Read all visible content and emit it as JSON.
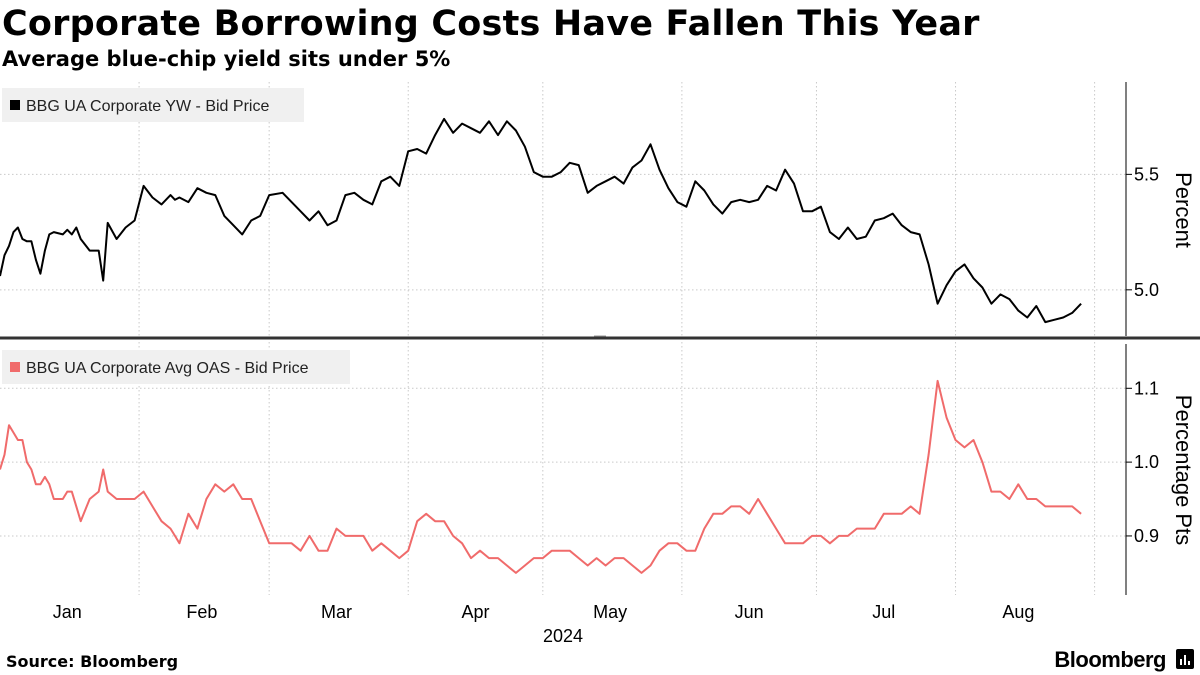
{
  "header": {
    "title": "Corporate Borrowing Costs Have Fallen This Year",
    "subtitle": "Average blue-chip yield sits under 5%"
  },
  "footer": {
    "source": "Source: Bloomberg",
    "brand": "Bloomberg"
  },
  "colors": {
    "top_series": "#000000",
    "bottom_series": "#f06b6b",
    "grid": "#c9c9c9",
    "legend_bg": "#f0f0f0",
    "divider": "#333333"
  },
  "chart_data": {
    "type": "line",
    "x_label": "2024",
    "months": [
      "Jan",
      "Feb",
      "Mar",
      "Apr",
      "May",
      "Jun",
      "Jul",
      "Aug"
    ],
    "panels": [
      {
        "name": "top",
        "axis_label": "Percent",
        "legend": "BBG UA Corporate YW - Bid Price",
        "ylim": [
          4.8,
          5.9
        ],
        "yticks": [
          "5.0",
          "5.5"
        ],
        "grid": true,
        "series": [
          {
            "name": "BBG UA Corporate YW - Bid Price",
            "x": [
              "2024-01-01",
              "2024-01-02",
              "2024-01-03",
              "2024-01-04",
              "2024-01-05",
              "2024-01-06",
              "2024-01-07",
              "2024-01-08",
              "2024-01-09",
              "2024-01-10",
              "2024-01-11",
              "2024-01-12",
              "2024-01-13",
              "2024-01-15",
              "2024-01-16",
              "2024-01-17",
              "2024-01-18",
              "2024-01-19",
              "2024-01-21",
              "2024-01-23",
              "2024-01-24",
              "2024-01-25",
              "2024-01-27",
              "2024-01-29",
              "2024-01-31",
              "2024-02-02",
              "2024-02-04",
              "2024-02-06",
              "2024-02-08",
              "2024-02-09",
              "2024-02-10",
              "2024-02-12",
              "2024-02-14",
              "2024-02-16",
              "2024-02-18",
              "2024-02-20",
              "2024-02-22",
              "2024-02-24",
              "2024-02-26",
              "2024-02-28",
              "2024-03-01",
              "2024-03-04",
              "2024-03-06",
              "2024-03-08",
              "2024-03-10",
              "2024-03-12",
              "2024-03-14",
              "2024-03-16",
              "2024-03-18",
              "2024-03-20",
              "2024-03-22",
              "2024-03-24",
              "2024-03-26",
              "2024-03-28",
              "2024-03-30",
              "2024-04-01",
              "2024-04-03",
              "2024-04-05",
              "2024-04-07",
              "2024-04-09",
              "2024-04-11",
              "2024-04-13",
              "2024-04-15",
              "2024-04-17",
              "2024-04-19",
              "2024-04-21",
              "2024-04-23",
              "2024-04-25",
              "2024-04-27",
              "2024-04-29",
              "2024-05-01",
              "2024-05-03",
              "2024-05-05",
              "2024-05-07",
              "2024-05-09",
              "2024-05-11",
              "2024-05-13",
              "2024-05-15",
              "2024-05-17",
              "2024-05-19",
              "2024-05-21",
              "2024-05-23",
              "2024-05-25",
              "2024-05-27",
              "2024-05-29",
              "2024-05-31",
              "2024-06-02",
              "2024-06-04",
              "2024-06-06",
              "2024-06-08",
              "2024-06-10",
              "2024-06-12",
              "2024-06-14",
              "2024-06-16",
              "2024-06-18",
              "2024-06-20",
              "2024-06-22",
              "2024-06-24",
              "2024-06-26",
              "2024-06-28",
              "2024-06-30",
              "2024-07-02",
              "2024-07-04",
              "2024-07-06",
              "2024-07-08",
              "2024-07-10",
              "2024-07-12",
              "2024-07-14",
              "2024-07-16",
              "2024-07-18",
              "2024-07-20",
              "2024-07-22",
              "2024-07-24",
              "2024-07-26",
              "2024-07-28",
              "2024-07-30",
              "2024-08-01",
              "2024-08-03",
              "2024-08-05",
              "2024-08-07",
              "2024-08-09",
              "2024-08-11",
              "2024-08-13",
              "2024-08-15",
              "2024-08-17",
              "2024-08-19",
              "2024-08-21",
              "2024-08-23",
              "2024-08-25",
              "2024-08-27",
              "2024-08-29"
            ],
            "values": [
              5.06,
              5.15,
              5.19,
              5.25,
              5.27,
              5.22,
              5.21,
              5.21,
              5.13,
              5.07,
              5.17,
              5.24,
              5.25,
              5.24,
              5.26,
              5.24,
              5.27,
              5.22,
              5.17,
              5.17,
              5.04,
              5.29,
              5.22,
              5.27,
              5.3,
              5.45,
              5.4,
              5.37,
              5.41,
              5.39,
              5.4,
              5.38,
              5.44,
              5.42,
              5.41,
              5.32,
              5.28,
              5.24,
              5.3,
              5.32,
              5.41,
              5.42,
              5.38,
              5.34,
              5.3,
              5.34,
              5.28,
              5.3,
              5.41,
              5.42,
              5.39,
              5.37,
              5.47,
              5.49,
              5.45,
              5.6,
              5.61,
              5.59,
              5.67,
              5.74,
              5.68,
              5.72,
              5.7,
              5.68,
              5.73,
              5.67,
              5.73,
              5.69,
              5.62,
              5.51,
              5.49,
              5.49,
              5.51,
              5.55,
              5.54,
              5.42,
              5.45,
              5.47,
              5.49,
              5.46,
              5.53,
              5.56,
              5.63,
              5.52,
              5.44,
              5.38,
              5.36,
              5.47,
              5.43,
              5.37,
              5.33,
              5.38,
              5.39,
              5.38,
              5.39,
              5.45,
              5.43,
              5.52,
              5.46,
              5.34,
              5.34,
              5.36,
              5.25,
              5.22,
              5.27,
              5.22,
              5.23,
              5.3,
              5.31,
              5.33,
              5.28,
              5.25,
              5.24,
              5.11,
              4.94,
              5.02,
              5.08,
              5.11,
              5.05,
              5.01,
              4.94,
              4.98,
              4.96,
              4.91,
              4.88,
              4.93,
              4.86,
              4.87,
              4.88,
              4.9,
              4.94
            ]
          }
        ]
      },
      {
        "name": "bottom",
        "axis_label": "Percentage Pts",
        "legend": "BBG UA Corporate Avg OAS - Bid Price",
        "ylim": [
          0.82,
          1.16
        ],
        "yticks": [
          "0.9",
          "1.0",
          "1.1"
        ],
        "grid": true,
        "series": [
          {
            "name": "BBG UA Corporate Avg OAS - Bid Price",
            "x": [
              "2024-01-01",
              "2024-01-02",
              "2024-01-03",
              "2024-01-04",
              "2024-01-05",
              "2024-01-06",
              "2024-01-07",
              "2024-01-08",
              "2024-01-09",
              "2024-01-10",
              "2024-01-11",
              "2024-01-12",
              "2024-01-13",
              "2024-01-15",
              "2024-01-16",
              "2024-01-17",
              "2024-01-18",
              "2024-01-19",
              "2024-01-21",
              "2024-01-23",
              "2024-01-24",
              "2024-01-25",
              "2024-01-27",
              "2024-01-29",
              "2024-01-31",
              "2024-02-02",
              "2024-02-04",
              "2024-02-06",
              "2024-02-08",
              "2024-02-09",
              "2024-02-10",
              "2024-02-12",
              "2024-02-14",
              "2024-02-16",
              "2024-02-18",
              "2024-02-20",
              "2024-02-22",
              "2024-02-24",
              "2024-02-26",
              "2024-02-28",
              "2024-03-01",
              "2024-03-04",
              "2024-03-06",
              "2024-03-08",
              "2024-03-10",
              "2024-03-12",
              "2024-03-14",
              "2024-03-16",
              "2024-03-18",
              "2024-03-20",
              "2024-03-22",
              "2024-03-24",
              "2024-03-26",
              "2024-03-28",
              "2024-03-30",
              "2024-04-01",
              "2024-04-03",
              "2024-04-05",
              "2024-04-07",
              "2024-04-09",
              "2024-04-11",
              "2024-04-13",
              "2024-04-15",
              "2024-04-17",
              "2024-04-19",
              "2024-04-21",
              "2024-04-23",
              "2024-04-25",
              "2024-04-27",
              "2024-04-29",
              "2024-05-01",
              "2024-05-03",
              "2024-05-05",
              "2024-05-07",
              "2024-05-09",
              "2024-05-11",
              "2024-05-13",
              "2024-05-15",
              "2024-05-17",
              "2024-05-19",
              "2024-05-21",
              "2024-05-23",
              "2024-05-25",
              "2024-05-27",
              "2024-05-29",
              "2024-05-31",
              "2024-06-02",
              "2024-06-04",
              "2024-06-06",
              "2024-06-08",
              "2024-06-10",
              "2024-06-12",
              "2024-06-14",
              "2024-06-16",
              "2024-06-18",
              "2024-06-20",
              "2024-06-22",
              "2024-06-24",
              "2024-06-26",
              "2024-06-28",
              "2024-06-30",
              "2024-07-02",
              "2024-07-04",
              "2024-07-06",
              "2024-07-08",
              "2024-07-10",
              "2024-07-12",
              "2024-07-14",
              "2024-07-16",
              "2024-07-18",
              "2024-07-20",
              "2024-07-22",
              "2024-07-24",
              "2024-07-26",
              "2024-07-28",
              "2024-07-30",
              "2024-08-01",
              "2024-08-03",
              "2024-08-05",
              "2024-08-07",
              "2024-08-09",
              "2024-08-11",
              "2024-08-13",
              "2024-08-15",
              "2024-08-17",
              "2024-08-19",
              "2024-08-21",
              "2024-08-23",
              "2024-08-25",
              "2024-08-27",
              "2024-08-29"
            ],
            "values": [
              0.99,
              1.01,
              1.05,
              1.04,
              1.03,
              1.03,
              1.0,
              0.99,
              0.97,
              0.97,
              0.98,
              0.97,
              0.95,
              0.95,
              0.96,
              0.96,
              0.94,
              0.92,
              0.95,
              0.96,
              0.99,
              0.96,
              0.95,
              0.95,
              0.95,
              0.96,
              0.94,
              0.92,
              0.91,
              0.9,
              0.89,
              0.93,
              0.91,
              0.95,
              0.97,
              0.96,
              0.97,
              0.95,
              0.95,
              0.92,
              0.89,
              0.89,
              0.89,
              0.88,
              0.9,
              0.88,
              0.88,
              0.91,
              0.9,
              0.9,
              0.9,
              0.88,
              0.89,
              0.88,
              0.87,
              0.88,
              0.92,
              0.93,
              0.92,
              0.92,
              0.9,
              0.89,
              0.87,
              0.88,
              0.87,
              0.87,
              0.86,
              0.85,
              0.86,
              0.87,
              0.87,
              0.88,
              0.88,
              0.88,
              0.87,
              0.86,
              0.87,
              0.86,
              0.87,
              0.87,
              0.86,
              0.85,
              0.86,
              0.88,
              0.89,
              0.89,
              0.88,
              0.88,
              0.91,
              0.93,
              0.93,
              0.94,
              0.94,
              0.93,
              0.95,
              0.93,
              0.91,
              0.89,
              0.89,
              0.89,
              0.9,
              0.9,
              0.89,
              0.9,
              0.9,
              0.91,
              0.91,
              0.91,
              0.93,
              0.93,
              0.93,
              0.94,
              0.93,
              1.01,
              1.11,
              1.06,
              1.03,
              1.02,
              1.03,
              1.0,
              0.96,
              0.96,
              0.95,
              0.97,
              0.95,
              0.95,
              0.94,
              0.94,
              0.94,
              0.94,
              0.93
            ]
          }
        ]
      }
    ]
  }
}
